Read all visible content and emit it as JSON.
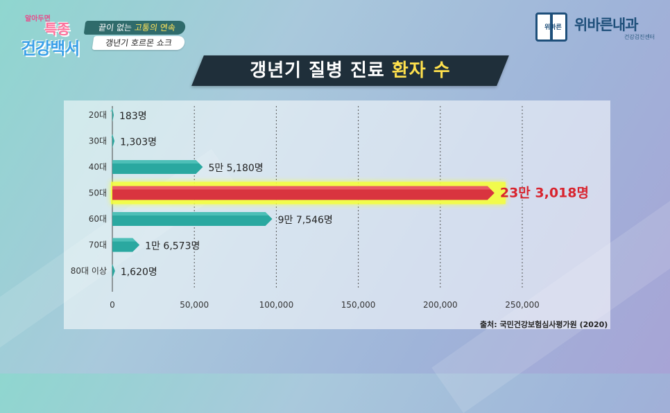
{
  "show": {
    "logo_top": "알아두면",
    "logo_line1": "특종",
    "logo_line2": "건강백서",
    "caption1_pre": "끝이 없는 ",
    "caption1_highlight": "고통의 연속",
    "caption2": "갱년기 호르몬 쇼크"
  },
  "clinic": {
    "mark_text": "위바른",
    "name": "위바른내과",
    "sub": "건강검진센터"
  },
  "title": {
    "part1": "갱년기 질병 진료 ",
    "part2": "환자 수"
  },
  "source": "출처: 국민건강보험심사평가원 (2020)",
  "colors": {
    "teal_bar": "#2aa8a0",
    "teal_bar_light": "#5cc9c1",
    "highlight_bar": "#d9343f",
    "highlight_glow": "#f5ff3a",
    "highlight_label": "#d8242f"
  },
  "chart_data": {
    "type": "bar",
    "orientation": "horizontal",
    "categories": [
      "20대",
      "30대",
      "40대",
      "50대",
      "60대",
      "70대",
      "80대 이상"
    ],
    "values": [
      183,
      1303,
      55180,
      233018,
      97546,
      16573,
      1620
    ],
    "value_labels": [
      "183명",
      "1,303명",
      "5만 5,180명",
      "23만 3,018명",
      "9만 7,546명",
      "1만 6,573명",
      "1,620명"
    ],
    "highlight_index": 3,
    "xlim": [
      0,
      280000
    ],
    "xticks": [
      0,
      50000,
      100000,
      150000,
      200000,
      250000
    ],
    "xtick_labels": [
      "0",
      "50,000",
      "100,000",
      "150,000",
      "200,000",
      "250,000"
    ],
    "grid": "vertical-dotted"
  }
}
